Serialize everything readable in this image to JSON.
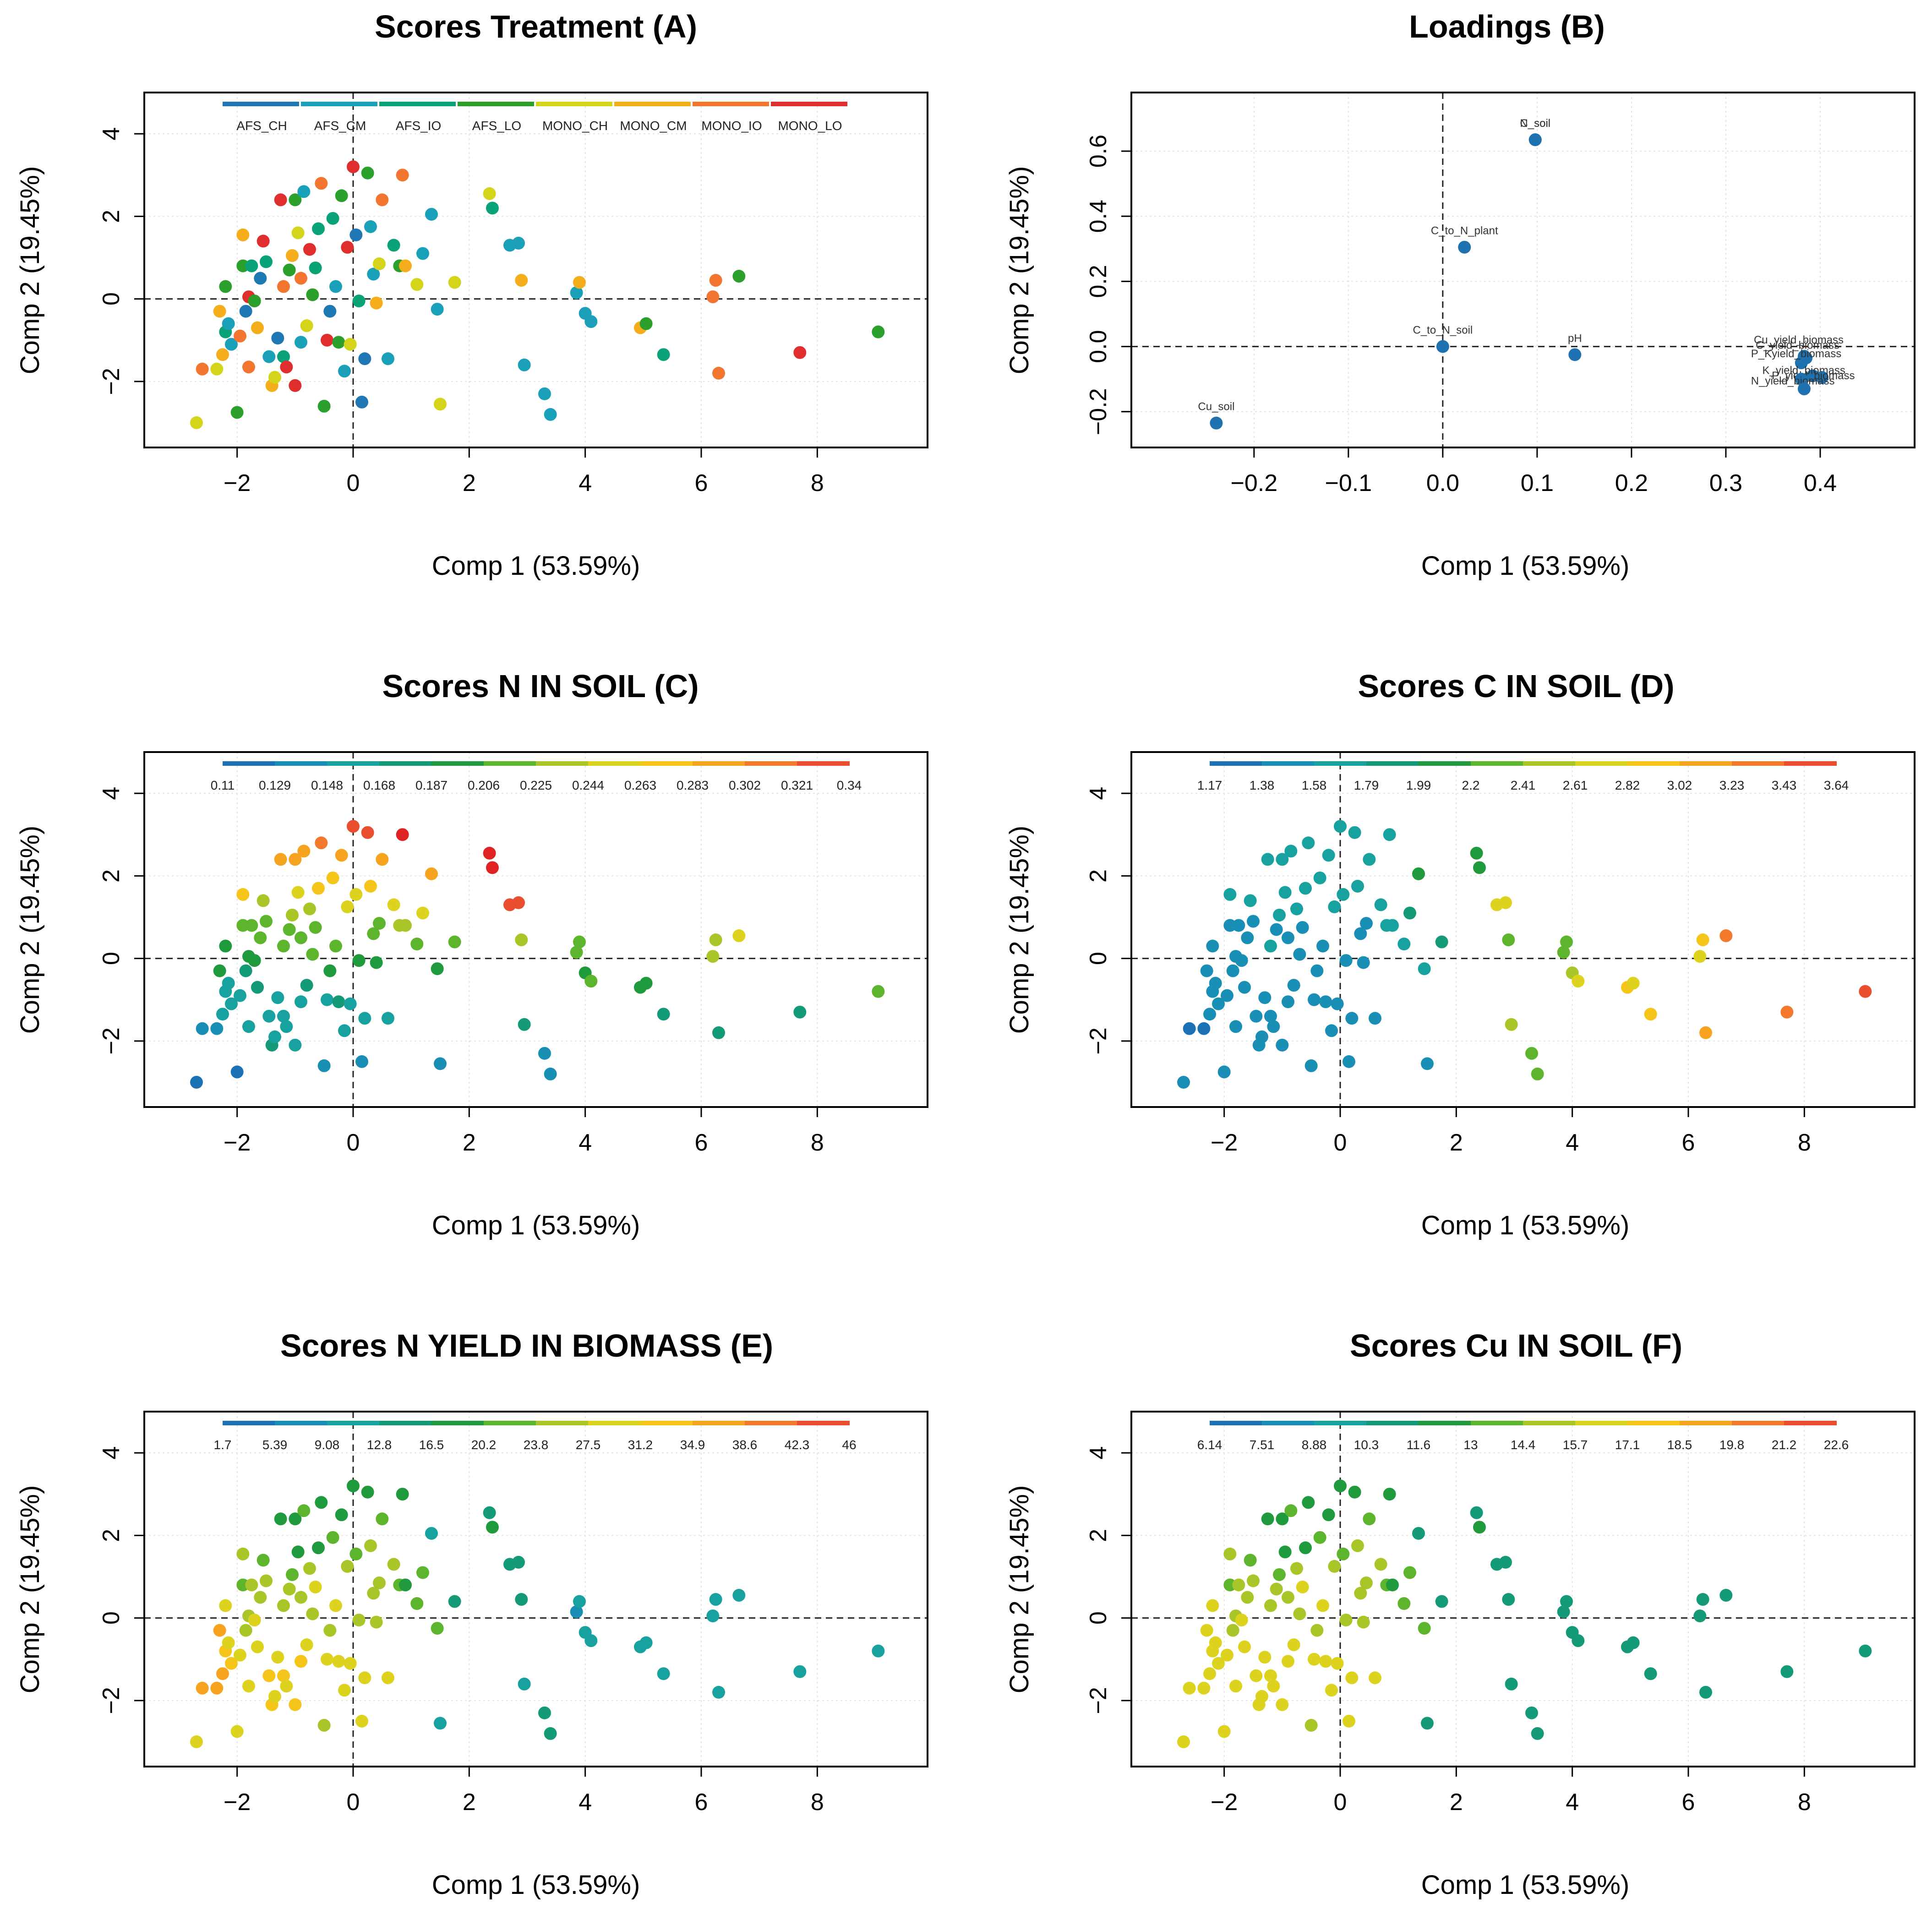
{
  "colors": {
    "palette8": [
      "#1f78b4",
      "#1aa0b8",
      "#0aa378",
      "#2ca02c",
      "#d4d41a",
      "#f4ae1c",
      "#f27630",
      "#e02e2e"
    ],
    "palette13": [
      "#1b72b5",
      "#1a8fb6",
      "#17a2a0",
      "#159a78",
      "#1f9a3c",
      "#5db52d",
      "#a8c628",
      "#ddd31f",
      "#f5c51a",
      "#f6a320",
      "#f3792c",
      "#eb4d2f",
      "#e02424"
    ]
  },
  "chart_data": [
    {
      "id": "A",
      "type": "scatter",
      "title": "Scores Treatment  (A)",
      "xlabel": "Comp 1 (53.59%)",
      "ylabel": "Comp 2 (19.45%)",
      "xlim": [
        -3.6,
        9.9
      ],
      "ylim": [
        -3.6,
        5.0
      ],
      "xticks": [
        -2,
        0,
        2,
        4,
        6,
        8
      ],
      "yticks": [
        -2,
        0,
        2,
        4
      ],
      "legend": {
        "kind": "categorical",
        "labels": [
          "AFS_CH",
          "AFS_CM",
          "AFS_IO",
          "AFS_LO",
          "MONO_CH",
          "MONO_CM",
          "MONO_IO",
          "MONO_LO"
        ]
      },
      "colorvar": "treatment"
    },
    {
      "id": "B",
      "type": "scatter",
      "title": "Loadings   (B)",
      "xlabel": "Comp 1 (53.59%)",
      "ylabel": "Comp 2 (19.45%)",
      "xlim": [
        -0.33,
        0.5
      ],
      "ylim": [
        -0.31,
        0.78
      ],
      "xticks": [
        -0.2,
        -0.1,
        0.0,
        0.1,
        0.2,
        0.3,
        0.4
      ],
      "xticklabels": [
        "−0.2",
        "−0.1",
        "0.0",
        "0.1",
        "0.2",
        "0.3",
        "0.4"
      ],
      "yticks": [
        -0.2,
        0.0,
        0.2,
        0.4,
        0.6
      ],
      "yticklabels": [
        "−0.2",
        "0.0",
        "0.2",
        "0.4",
        "0.6"
      ],
      "points": [
        {
          "x": 0.098,
          "y": 0.635,
          "label": "C_soil"
        },
        {
          "x": 0.098,
          "y": 0.635,
          "label": "N_soil"
        },
        {
          "x": 0.023,
          "y": 0.305,
          "label": "C_to_N_plant"
        },
        {
          "x": 0.0,
          "y": 0.0,
          "label": "C_to_N_soil"
        },
        {
          "x": 0.14,
          "y": -0.025,
          "label": "pH"
        },
        {
          "x": -0.24,
          "y": -0.235,
          "label": "Cu_soil"
        },
        {
          "x": 0.383,
          "y": -0.03,
          "label": "Cu_yield_biomass"
        },
        {
          "x": 0.385,
          "y": -0.035,
          "label": "C_yield_biomass"
        },
        {
          "x": 0.38,
          "y": -0.05,
          "label": "P_Kyield_biomass"
        },
        {
          "x": 0.392,
          "y": -0.09,
          "label": "K_yield_biomass"
        },
        {
          "x": 0.402,
          "y": -0.095,
          "label": "P_yield_biomass"
        },
        {
          "x": 0.38,
          "y": -0.1,
          "label": "N_yield_biomass"
        },
        {
          "x": 0.383,
          "y": -0.13,
          "label": ""
        }
      ]
    },
    {
      "id": "C",
      "type": "scatter",
      "title": "Scores N IN SOIL   (C)",
      "xlabel": "Comp 1 (53.59%)",
      "ylabel": "Comp 2 (19.45%)",
      "xlim": [
        -3.6,
        9.9
      ],
      "ylim": [
        -3.6,
        5.0
      ],
      "xticks": [
        -2,
        0,
        2,
        4,
        6,
        8
      ],
      "yticks": [
        -2,
        0,
        2,
        4
      ],
      "legend": {
        "kind": "continuous",
        "labels": [
          "0.11",
          "0.129",
          "0.148",
          "0.168",
          "0.187",
          "0.206",
          "0.225",
          "0.244",
          "0.263",
          "0.283",
          "0.302",
          "0.321",
          "0.34"
        ]
      },
      "colorvar": "nsoil"
    },
    {
      "id": "D",
      "type": "scatter",
      "title": "Scores C IN SOIL  (D)",
      "xlabel": "Comp 1 (53.59%)",
      "ylabel": "Comp 2 (19.45%)",
      "xlim": [
        -3.6,
        9.9
      ],
      "ylim": [
        -3.6,
        5.0
      ],
      "xticks": [
        -2,
        0,
        2,
        4,
        6,
        8
      ],
      "yticks": [
        -2,
        0,
        2,
        4
      ],
      "legend": {
        "kind": "continuous",
        "labels": [
          "1.17",
          "1.38",
          "1.58",
          "1.79",
          "1.99",
          "2.2",
          "2.41",
          "2.61",
          "2.82",
          "3.02",
          "3.23",
          "3.43",
          "3.64"
        ]
      },
      "colorvar": "csoil"
    },
    {
      "id": "E",
      "type": "scatter",
      "title": "Scores N YIELD IN BIOMASS  (E)",
      "xlabel": "Comp 1 (53.59%)",
      "ylabel": "Comp 2 (19.45%)",
      "xlim": [
        -3.6,
        9.9
      ],
      "ylim": [
        -3.6,
        5.0
      ],
      "xticks": [
        -2,
        0,
        2,
        4,
        6,
        8
      ],
      "yticks": [
        -2,
        0,
        2,
        4
      ],
      "legend": {
        "kind": "continuous",
        "labels": [
          "1.7",
          "5.39",
          "9.08",
          "12.8",
          "16.5",
          "20.2",
          "23.8",
          "27.5",
          "31.2",
          "34.9",
          "38.6",
          "42.3",
          "46"
        ]
      },
      "colorvar": "nyield"
    },
    {
      "id": "F",
      "type": "scatter",
      "title": "Scores Cu IN SOIL  (F)",
      "xlabel": "Comp 1 (53.59%)",
      "ylabel": "Comp 2 (19.45%)",
      "xlim": [
        -3.6,
        9.9
      ],
      "ylim": [
        -3.6,
        5.0
      ],
      "xticks": [
        -2,
        0,
        2,
        4,
        6,
        8
      ],
      "yticks": [
        -2,
        0,
        2,
        4
      ],
      "legend": {
        "kind": "continuous",
        "labels": [
          "6.14",
          "7.51",
          "8.88",
          "10.3",
          "11.6",
          "13",
          "14.4",
          "15.7",
          "17.1",
          "18.5",
          "19.8",
          "21.2",
          "22.6"
        ]
      },
      "colorvar": "cusoil"
    }
  ],
  "scores": [
    [
      -2.7,
      -3.0,
      4,
      0,
      1,
      7
    ],
    [
      -2.6,
      -1.7,
      6,
      1,
      0,
      9
    ],
    [
      -2.35,
      -1.7,
      4,
      1,
      0,
      9
    ],
    [
      -2.3,
      -0.3,
      5,
      4,
      1,
      9
    ],
    [
      -2.25,
      -1.35,
      5,
      2,
      1,
      9
    ],
    [
      -2.2,
      -0.8,
      2,
      2,
      1,
      8
    ],
    [
      -2.2,
      0.3,
      3,
      4,
      1,
      7
    ],
    [
      -2.15,
      -0.6,
      1,
      2,
      1,
      7
    ],
    [
      -2.1,
      -1.1,
      1,
      2,
      1,
      8
    ],
    [
      -2.0,
      -2.75,
      3,
      0,
      1,
      7
    ],
    [
      -1.95,
      -0.9,
      6,
      2,
      1,
      7
    ],
    [
      -1.9,
      0.8,
      3,
      5,
      1,
      5
    ],
    [
      -1.9,
      1.55,
      5,
      8,
      2,
      6
    ],
    [
      -1.85,
      -0.3,
      0,
      3,
      1,
      6
    ],
    [
      -1.8,
      0.05,
      7,
      4,
      1,
      6
    ],
    [
      -1.8,
      -1.65,
      6,
      2,
      1,
      7
    ],
    [
      -1.75,
      0.8,
      2,
      5,
      1,
      6
    ],
    [
      -1.7,
      -0.05,
      3,
      4,
      1,
      7
    ],
    [
      -1.65,
      -0.7,
      5,
      3,
      1,
      7
    ],
    [
      -1.6,
      0.5,
      0,
      5,
      1,
      6
    ],
    [
      -1.55,
      1.4,
      7,
      6,
      2,
      5
    ],
    [
      -1.5,
      0.9,
      2,
      5,
      1,
      6
    ],
    [
      -1.45,
      -1.4,
      1,
      2,
      1,
      8
    ],
    [
      -1.4,
      -2.1,
      5,
      3,
      1,
      8
    ],
    [
      -1.35,
      -1.9,
      4,
      2,
      1,
      7
    ],
    [
      -1.3,
      -0.95,
      0,
      2,
      1,
      7
    ],
    [
      -1.25,
      2.4,
      7,
      9,
      2,
      4
    ],
    [
      -1.2,
      -1.4,
      2,
      2,
      1,
      8
    ],
    [
      -1.2,
      0.3,
      6,
      5,
      2,
      6
    ],
    [
      -1.15,
      -1.65,
      7,
      2,
      1,
      7
    ],
    [
      -1.1,
      0.7,
      3,
      5,
      1,
      6
    ],
    [
      -1.05,
      1.05,
      5,
      6,
      2,
      5
    ],
    [
      -1.0,
      2.4,
      3,
      9,
      2,
      4
    ],
    [
      -1.0,
      -2.1,
      7,
      2,
      1,
      8
    ],
    [
      -0.95,
      1.6,
      4,
      7,
      2,
      4
    ],
    [
      -0.9,
      -1.05,
      1,
      2,
      1,
      8
    ],
    [
      -0.9,
      0.5,
      6,
      5,
      1,
      6
    ],
    [
      -0.85,
      2.6,
      1,
      9,
      2,
      5
    ],
    [
      -0.8,
      -0.65,
      4,
      3,
      1,
      7
    ],
    [
      -0.75,
      1.2,
      7,
      6,
      2,
      6
    ],
    [
      -0.7,
      0.1,
      3,
      5,
      1,
      6
    ],
    [
      -0.65,
      0.75,
      2,
      5,
      1,
      7
    ],
    [
      -0.6,
      1.7,
      2,
      8,
      2,
      4
    ],
    [
      -0.55,
      2.8,
      6,
      10,
      2,
      4
    ],
    [
      -0.5,
      -2.6,
      3,
      1,
      1,
      6
    ],
    [
      -0.45,
      -1.0,
      7,
      2,
      1,
      7
    ],
    [
      -0.4,
      -0.3,
      0,
      4,
      1,
      6
    ],
    [
      -0.35,
      1.95,
      2,
      8,
      2,
      5
    ],
    [
      -0.3,
      0.3,
      1,
      5,
      1,
      7
    ],
    [
      -0.25,
      -1.05,
      3,
      3,
      1,
      7
    ],
    [
      -0.2,
      2.5,
      3,
      9,
      2,
      4
    ],
    [
      -0.15,
      -1.75,
      1,
      2,
      1,
      7
    ],
    [
      -0.1,
      1.25,
      7,
      7,
      2,
      6
    ],
    [
      -0.05,
      -1.1,
      4,
      2,
      1,
      7
    ],
    [
      0.0,
      3.2,
      7,
      11,
      2,
      4
    ],
    [
      0.05,
      1.55,
      0,
      7,
      2,
      5
    ],
    [
      0.1,
      -0.05,
      2,
      4,
      1,
      6
    ],
    [
      0.15,
      -2.5,
      0,
      1,
      1,
      7
    ],
    [
      0.2,
      -1.45,
      0,
      2,
      1,
      7
    ],
    [
      0.25,
      3.05,
      3,
      11,
      2,
      4
    ],
    [
      0.3,
      1.75,
      1,
      8,
      2,
      6
    ],
    [
      0.35,
      0.6,
      1,
      5,
      1,
      6
    ],
    [
      0.4,
      -0.1,
      5,
      4,
      1,
      6
    ],
    [
      0.45,
      0.85,
      4,
      5,
      1,
      6
    ],
    [
      0.5,
      2.4,
      6,
      9,
      2,
      5
    ],
    [
      0.6,
      -1.45,
      1,
      2,
      1,
      7
    ],
    [
      0.7,
      1.3,
      2,
      7,
      2,
      6
    ],
    [
      0.8,
      0.8,
      3,
      6,
      2,
      5
    ],
    [
      0.85,
      3.0,
      6,
      12,
      2,
      4
    ],
    [
      0.9,
      0.8,
      5,
      6,
      2,
      4
    ],
    [
      1.1,
      0.35,
      4,
      5,
      2,
      5
    ],
    [
      1.2,
      1.1,
      1,
      7,
      3,
      5
    ],
    [
      1.35,
      2.05,
      1,
      9,
      4,
      2
    ],
    [
      1.45,
      -0.25,
      1,
      4,
      2,
      5
    ],
    [
      1.5,
      -2.55,
      4,
      1,
      1,
      2
    ],
    [
      1.75,
      0.4,
      4,
      5,
      3,
      3
    ],
    [
      2.35,
      2.55,
      4,
      12,
      4,
      3
    ],
    [
      2.4,
      2.2,
      2,
      12,
      4,
      4
    ],
    [
      2.7,
      1.3,
      1,
      11,
      7,
      3
    ],
    [
      2.85,
      1.35,
      1,
      11,
      7,
      3
    ],
    [
      2.9,
      0.45,
      5,
      6,
      5,
      3
    ],
    [
      2.95,
      -1.6,
      1,
      3,
      6,
      2
    ],
    [
      3.3,
      -2.3,
      1,
      1,
      5,
      3
    ],
    [
      3.4,
      -2.8,
      1,
      1,
      5,
      3
    ],
    [
      3.85,
      0.15,
      1,
      5,
      5,
      1
    ],
    [
      3.9,
      0.4,
      5,
      5,
      5,
      2
    ],
    [
      4.0,
      -0.35,
      1,
      4,
      6,
      2
    ],
    [
      4.1,
      -0.55,
      1,
      5,
      7,
      2
    ],
    [
      4.95,
      -0.7,
      5,
      4,
      8,
      2
    ],
    [
      5.05,
      -0.6,
      3,
      4,
      7,
      2
    ],
    [
      5.35,
      -1.35,
      2,
      3,
      8,
      2
    ],
    [
      6.2,
      0.05,
      6,
      6,
      7,
      2
    ],
    [
      6.25,
      0.45,
      6,
      6,
      8,
      2
    ],
    [
      6.3,
      -1.8,
      6,
      3,
      9,
      2
    ],
    [
      6.65,
      0.55,
      3,
      7,
      10,
      2
    ],
    [
      7.7,
      -1.3,
      7,
      3,
      10,
      2
    ],
    [
      9.05,
      -0.8,
      3,
      5,
      11,
      2
    ]
  ]
}
